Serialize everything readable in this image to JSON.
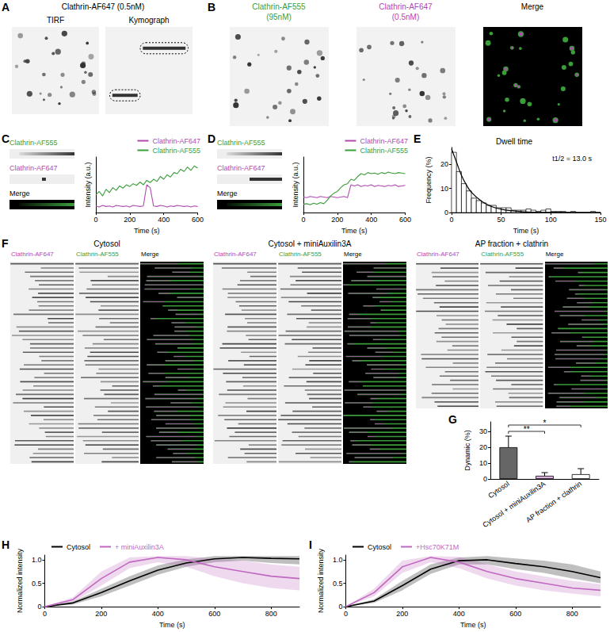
{
  "chart_data": [
    {
      "panel": "C",
      "type": "line",
      "x_label": "Time (s)",
      "y_label": "Intensity (a.u.)",
      "kymograph_channels": [
        {
          "label": "Clathrin-AF555",
          "color": "#3a9d3a"
        },
        {
          "label": "Clathrin-AF647",
          "color": "#b04ab0"
        },
        {
          "label": "Merge",
          "color": "#000000"
        }
      ],
      "x": [
        0,
        20,
        40,
        60,
        80,
        100,
        120,
        140,
        160,
        180,
        200,
        220,
        240,
        260,
        280,
        300,
        320,
        340,
        360,
        380,
        400,
        420,
        440,
        460,
        480,
        500,
        520,
        540,
        560,
        580,
        600
      ],
      "series": [
        {
          "name": "Clathrin-AF647",
          "color": "#b04ab0",
          "values": [
            0.12,
            0.1,
            0.13,
            0.11,
            0.12,
            0.1,
            0.13,
            0.12,
            0.11,
            0.12,
            0.1,
            0.13,
            0.12,
            0.11,
            0.12,
            0.5,
            0.45,
            0.12,
            0.11,
            0.13,
            0.12,
            0.1,
            0.12,
            0.11,
            0.13,
            0.12,
            0.11,
            0.12,
            0.1,
            0.12,
            0.11
          ]
        },
        {
          "name": "Clathrin-AF555",
          "color": "#3a9d3a",
          "values": [
            0.32,
            0.38,
            0.3,
            0.42,
            0.36,
            0.45,
            0.4,
            0.48,
            0.44,
            0.5,
            0.47,
            0.52,
            0.49,
            0.55,
            0.5,
            0.58,
            0.54,
            0.6,
            0.56,
            0.65,
            0.6,
            0.68,
            0.64,
            0.72,
            0.7,
            0.78,
            0.74,
            0.82,
            0.76,
            0.84,
            0.8
          ]
        }
      ],
      "xlim": [
        0,
        600
      ],
      "xticks": [
        0,
        200,
        400,
        600
      ],
      "ylim": [
        0,
        1
      ],
      "tick_labels": "x",
      "legend": "upper right"
    },
    {
      "panel": "D",
      "type": "line",
      "x_label": "Time (s)",
      "y_label": "Intensity (a.u.)",
      "kymograph_channels": [
        {
          "label": "Clathrin-AF555",
          "color": "#3a9d3a"
        },
        {
          "label": "Clathrin-AF647",
          "color": "#b04ab0"
        },
        {
          "label": "Merge",
          "color": "#000000"
        }
      ],
      "x": [
        0,
        20,
        40,
        60,
        80,
        100,
        120,
        140,
        160,
        180,
        200,
        220,
        240,
        260,
        280,
        300,
        320,
        340,
        360,
        380,
        400,
        420,
        440,
        460,
        480,
        500,
        520,
        540,
        560,
        580,
        600
      ],
      "series": [
        {
          "name": "Clathrin-AF647",
          "color": "#b04ab0",
          "values": [
            0.28,
            0.27,
            0.29,
            0.28,
            0.27,
            0.29,
            0.28,
            0.27,
            0.29,
            0.28,
            0.27,
            0.28,
            0.29,
            0.27,
            0.5,
            0.48,
            0.5,
            0.47,
            0.49,
            0.48,
            0.5,
            0.47,
            0.49,
            0.48,
            0.47,
            0.49,
            0.48,
            0.5,
            0.47,
            0.48,
            0.49
          ]
        },
        {
          "name": "Clathrin-AF555",
          "color": "#3a9d3a",
          "values": [
            0.15,
            0.16,
            0.14,
            0.17,
            0.15,
            0.18,
            0.16,
            0.22,
            0.3,
            0.35,
            0.38,
            0.45,
            0.5,
            0.52,
            0.6,
            0.58,
            0.65,
            0.7,
            0.68,
            0.72,
            0.7,
            0.71,
            0.69,
            0.72,
            0.7,
            0.73,
            0.71,
            0.7,
            0.72,
            0.71,
            0.7
          ]
        }
      ],
      "xlim": [
        0,
        600
      ],
      "xticks": [
        0,
        200,
        400,
        600
      ],
      "ylim": [
        0,
        1
      ],
      "tick_labels": "x",
      "legend": "upper right"
    },
    {
      "panel": "E",
      "type": "histogram",
      "title": "Dwell time",
      "annotation": "t1/2 = 13.0 s",
      "x_label": "Time (s)",
      "y_label": "Frequency (%)",
      "bins": [
        0,
        5,
        10,
        15,
        20,
        25,
        30,
        35,
        40,
        45,
        50,
        55,
        60,
        65,
        70,
        75,
        80,
        85,
        90,
        95,
        100,
        105,
        110,
        115,
        120,
        125,
        130,
        135,
        140,
        145,
        150
      ],
      "counts": [
        25,
        17,
        12,
        9,
        6,
        5,
        4,
        3,
        3,
        2,
        2,
        2,
        1,
        1,
        1,
        1.5,
        1,
        0.5,
        1,
        1.5,
        0.5,
        0.5,
        0.5,
        0,
        0.5,
        0,
        0,
        0,
        0.5,
        0
      ],
      "fit": {
        "x": [
          0,
          5,
          10,
          15,
          20,
          30,
          40,
          50,
          60,
          80,
          100,
          150
        ],
        "values": [
          26.5,
          21,
          15.5,
          11.5,
          8.5,
          4.8,
          2.6,
          1.4,
          0.8,
          0.2,
          0.1,
          0
        ]
      },
      "color": "#ffffff",
      "xlim": [
        0,
        150
      ],
      "xticks": [
        0,
        50,
        100,
        150
      ],
      "ylim": [
        0,
        27
      ],
      "yticks": [
        0,
        10,
        20
      ]
    },
    {
      "panel": "G",
      "type": "bar",
      "y_label": "Dynamic (%)",
      "categories": [
        "Cytosol",
        "Cytosol + miniAuxilin3A",
        "AP fraction + clathrin"
      ],
      "values": [
        20,
        2,
        3
      ],
      "errors": [
        7,
        2,
        3.5
      ],
      "colors": [
        "#666666",
        "#e0b0e0",
        "#ffffff"
      ],
      "annotations": [
        {
          "text": "**",
          "from": "Cytosol",
          "to": "Cytosol + miniAuxilin3A",
          "y": 30
        },
        {
          "text": "*",
          "from": "Cytosol",
          "to": "AP fraction + clathrin",
          "y": 34
        }
      ],
      "ylim": [
        0,
        36
      ],
      "yticks": [
        0,
        10,
        20,
        30
      ]
    },
    {
      "panel": "H",
      "type": "line",
      "x_label": "Time (s)",
      "y_label": "Normalized intensity",
      "x": [
        0,
        100,
        200,
        300,
        400,
        500,
        600,
        700,
        800,
        900
      ],
      "series": [
        {
          "name": "Cytosol",
          "color": "#000000",
          "values": [
            0,
            0.08,
            0.3,
            0.55,
            0.78,
            0.93,
            1.02,
            1.05,
            1.03,
            1.02
          ],
          "lower": [
            0,
            0.05,
            0.22,
            0.45,
            0.68,
            0.85,
            0.95,
            0.98,
            0.93,
            0.9
          ],
          "upper": [
            0,
            0.11,
            0.38,
            0.65,
            0.88,
            1.01,
            1.08,
            1.08,
            1.08,
            1.08
          ]
        },
        {
          "name": "+ miniAuxilin3A",
          "color": "#c068c0",
          "values": [
            0,
            0.15,
            0.6,
            0.95,
            1.05,
            1.0,
            0.85,
            0.75,
            0.65,
            0.6
          ],
          "lower": [
            0,
            0.1,
            0.45,
            0.82,
            0.95,
            0.85,
            0.65,
            0.5,
            0.4,
            0.35
          ],
          "upper": [
            0,
            0.2,
            0.75,
            1.05,
            1.08,
            1.08,
            1.02,
            0.98,
            0.9,
            0.85
          ]
        }
      ],
      "xlim": [
        0,
        900
      ],
      "xticks": [
        0,
        200,
        400,
        600,
        800
      ],
      "ylim": [
        0,
        1.1
      ],
      "yticks": [
        0,
        0.5,
        {
          "value": 1,
          "label": "1.0"
        }
      ],
      "legend": "upper left"
    },
    {
      "panel": "I",
      "type": "line",
      "x_label": "Time (s)",
      "y_label": "Normalized intensity",
      "x": [
        0,
        100,
        200,
        300,
        400,
        500,
        600,
        700,
        800,
        900
      ],
      "series": [
        {
          "name": "Cytosol",
          "color": "#000000",
          "values": [
            0,
            0.12,
            0.45,
            0.8,
            0.98,
            1.0,
            0.92,
            0.85,
            0.75,
            0.62
          ],
          "lower": [
            0,
            0.08,
            0.35,
            0.7,
            0.9,
            0.9,
            0.8,
            0.72,
            0.6,
            0.5
          ],
          "upper": [
            0,
            0.16,
            0.55,
            0.9,
            1.05,
            1.08,
            1.03,
            0.98,
            0.9,
            0.75
          ]
        },
        {
          "name": "+Hsc70K71M",
          "color": "#c068c0",
          "values": [
            0,
            0.3,
            0.85,
            1.05,
            0.95,
            0.75,
            0.6,
            0.5,
            0.4,
            0.35
          ],
          "lower": [
            0,
            0.22,
            0.72,
            0.95,
            0.82,
            0.6,
            0.45,
            0.35,
            0.28,
            0.22
          ],
          "upper": [
            0,
            0.38,
            0.98,
            1.08,
            1.06,
            0.9,
            0.75,
            0.65,
            0.55,
            0.48
          ]
        }
      ],
      "xlim": [
        0,
        900
      ],
      "xticks": [
        0,
        200,
        400,
        600,
        800
      ],
      "ylim": [
        0,
        1.1
      ],
      "yticks": [
        0,
        0.5,
        {
          "value": 1,
          "label": "1.0"
        }
      ],
      "legend": "upper left"
    }
  ],
  "image_panels": [
    {
      "panel": "A",
      "title": "Clathrin-AF647 (0.5nM)",
      "images": [
        {
          "label": "TIRF"
        },
        {
          "label": "Kymograph"
        }
      ]
    },
    {
      "panel": "B",
      "images": [
        {
          "label": "Clathrin-AF555",
          "sublabel": "(95nM)",
          "color": "#3a9d3a"
        },
        {
          "label": "Clathrin-AF647",
          "sublabel": "(0.5nM)",
          "color": "#b04ab0"
        },
        {
          "label": "Merge",
          "color": "#000000"
        }
      ]
    },
    {
      "panel": "F",
      "groups": [
        {
          "title": "Cytosol",
          "channels": [
            {
              "label": "Clathrin-AF647",
              "color": "#b04ab0"
            },
            {
              "label": "Clathrin-AF555",
              "color": "#3a9d3a"
            },
            {
              "label": "Merge",
              "color": "#000000"
            }
          ]
        },
        {
          "title": "Cytosol + miniAuxilin3A",
          "channels": [
            {
              "label": "Clathrin-AF647",
              "color": "#b04ab0"
            },
            {
              "label": "Clathrin-AF555",
              "color": "#3a9d3a"
            },
            {
              "label": "Merge",
              "color": "#000000"
            }
          ]
        },
        {
          "title": "AP fraction + clathrin",
          "channels": [
            {
              "label": "Clathrin-AF647",
              "color": "#b04ab0"
            },
            {
              "label": "Clathrin-AF555",
              "color": "#3a9d3a"
            },
            {
              "label": "Merge",
              "color": "#000000"
            }
          ]
        }
      ]
    }
  ]
}
